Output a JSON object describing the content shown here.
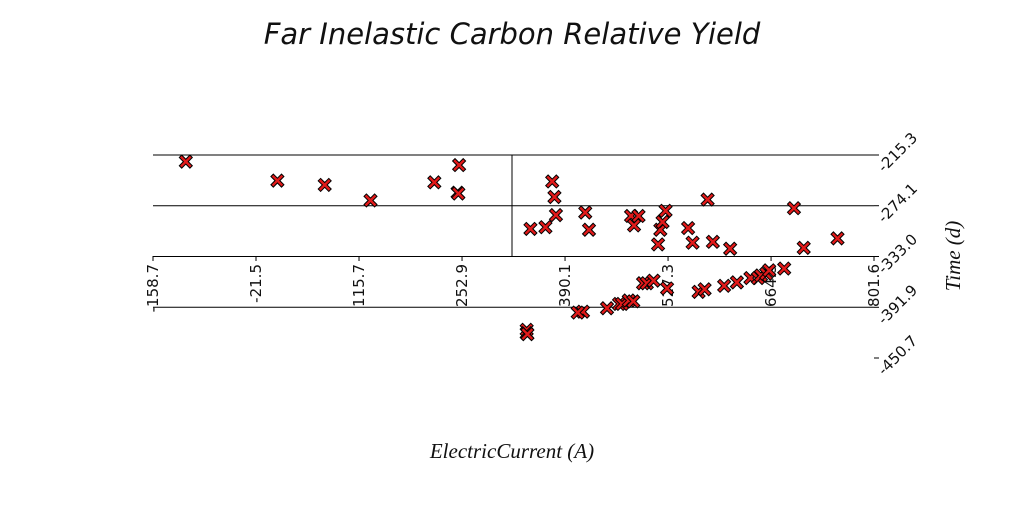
{
  "chart_data": {
    "type": "scatter",
    "title": "Far Inelastic Carbon Relative Yield",
    "xlabel": "ElectricCurrent (A)",
    "ylabel": "Time (d)",
    "xlim": [
      -158.7,
      801.6
    ],
    "ylim": [
      -450.7,
      -215.3
    ],
    "x_ticks": [
      "-158.7",
      "-21.5",
      "115.7",
      "252.9",
      "390.1",
      "527.3",
      "664.5",
      "801.6"
    ],
    "y_ticks": [
      "-215.3",
      "-274.1",
      "-333.0",
      "-391.9",
      "-450.7"
    ],
    "grid_y": true,
    "marker_color": "#e21a1a",
    "points": [
      [
        -115,
        -223
      ],
      [
        7,
        -245
      ],
      [
        70,
        -250
      ],
      [
        131,
        -268
      ],
      [
        216,
        -247
      ],
      [
        247,
        -259
      ],
      [
        249,
        -227
      ],
      [
        248,
        -260
      ],
      [
        339,
        -418
      ],
      [
        339,
        -422
      ],
      [
        340,
        -423
      ],
      [
        344,
        -301
      ],
      [
        364,
        -299
      ],
      [
        373,
        -246
      ],
      [
        376,
        -264
      ],
      [
        378,
        -285
      ],
      [
        417,
        -282
      ],
      [
        422,
        -302
      ],
      [
        414,
        -397
      ],
      [
        407,
        -398
      ],
      [
        446,
        -393
      ],
      [
        462,
        -388
      ],
      [
        466,
        -388
      ],
      [
        475,
        -384
      ],
      [
        481,
        -385
      ],
      [
        478,
        -286
      ],
      [
        482,
        -297
      ],
      [
        488,
        -286
      ],
      [
        494,
        -364
      ],
      [
        499,
        -364
      ],
      [
        508,
        -361
      ],
      [
        514,
        -319
      ],
      [
        517,
        -302
      ],
      [
        520,
        -293
      ],
      [
        524,
        -280
      ],
      [
        526,
        -370
      ],
      [
        554,
        -300
      ],
      [
        560,
        -317
      ],
      [
        568,
        -374
      ],
      [
        576,
        -371
      ],
      [
        580,
        -267
      ],
      [
        587,
        -316
      ],
      [
        602,
        -367
      ],
      [
        610,
        -324
      ],
      [
        619,
        -363
      ],
      [
        637,
        -358
      ],
      [
        647,
        -358
      ],
      [
        651,
        -355
      ],
      [
        658,
        -353
      ],
      [
        662,
        -349
      ],
      [
        682,
        -347
      ],
      [
        695,
        -277
      ],
      [
        708,
        -323
      ],
      [
        753,
        -312
      ]
    ]
  }
}
